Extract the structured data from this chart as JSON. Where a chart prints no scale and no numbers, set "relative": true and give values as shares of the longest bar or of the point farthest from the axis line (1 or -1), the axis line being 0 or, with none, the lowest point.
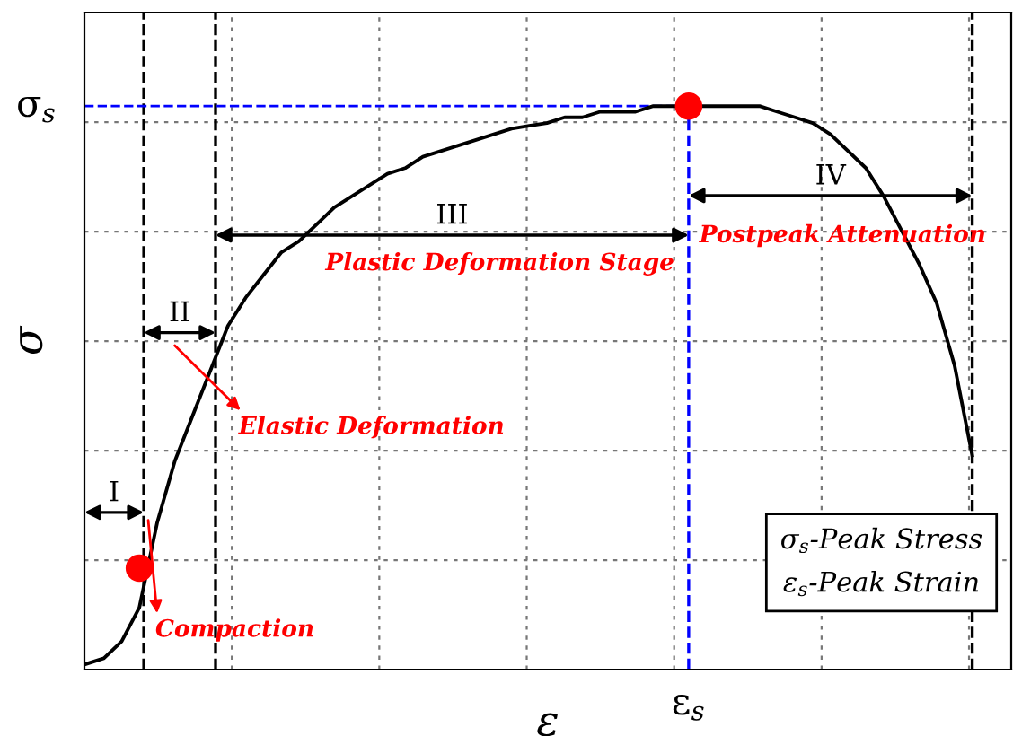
{
  "chart_data": {
    "type": "line",
    "relative": true,
    "xlabel": "ε",
    "ylabel": "σ",
    "grid": true,
    "legend": false,
    "marker": "none",
    "line_style": "solid",
    "categories": [
      null,
      null,
      null,
      null,
      null,
      null,
      null,
      null,
      null,
      null,
      null,
      null,
      null,
      null,
      null,
      null,
      null,
      null,
      null,
      null,
      null,
      null,
      null,
      null,
      null,
      null,
      null,
      null,
      null,
      null,
      null,
      null,
      null,
      null,
      null,
      null,
      null,
      null,
      null,
      null,
      null,
      null,
      null,
      null,
      null,
      null,
      null,
      null,
      null,
      null,
      null
    ],
    "series": [
      {
        "color": "#000000",
        "values": [
          0.01,
          0.02,
          0.05,
          0.11,
          0.26,
          0.37,
          0.45,
          0.53,
          0.61,
          0.66,
          0.7,
          0.74,
          0.76,
          0.79,
          0.82,
          0.84,
          0.86,
          0.88,
          0.89,
          0.91,
          0.92,
          0.93,
          0.94,
          0.95,
          0.96,
          0.965,
          0.97,
          0.98,
          0.98,
          0.99,
          0.99,
          0.99,
          1.0,
          1.0,
          1.0,
          1.0,
          1.0,
          1.0,
          1.0,
          0.99,
          0.98,
          0.97,
          0.95,
          0.92,
          0.89,
          0.84,
          0.78,
          0.72,
          0.65,
          0.54,
          0.38
        ]
      },
      {
        "type": "line",
        "marker": "circle",
        "color": "#ff0000",
        "values": [
          null,
          null,
          null,
          0.18,
          null,
          null,
          null,
          null,
          null,
          null,
          null,
          null,
          null,
          null,
          null,
          null,
          null,
          null,
          null,
          null,
          null,
          null,
          null,
          null,
          null,
          null,
          null,
          null,
          null,
          null,
          null,
          null,
          null,
          null,
          1.0,
          null,
          null,
          null,
          null,
          null,
          null,
          null,
          null,
          null,
          null,
          null,
          null,
          null,
          null,
          null,
          null
        ]
      }
    ],
    "ref_lines": [
      {
        "axis": "y",
        "value": 1.0,
        "label": "σ$_{s}$",
        "color": "#0000ff",
        "line_style": "dashed"
      }
    ],
    "annotations": [
      "I",
      "II",
      "III",
      "IV",
      "Compaction",
      "Elastic Deformation",
      "Plastic Deformation Stage",
      "Postpeak Attenuation",
      "σ$_{s}$-Peak Stress\nε$_{s}$-Peak Strain",
      "ε$_{s}$"
    ]
  }
}
